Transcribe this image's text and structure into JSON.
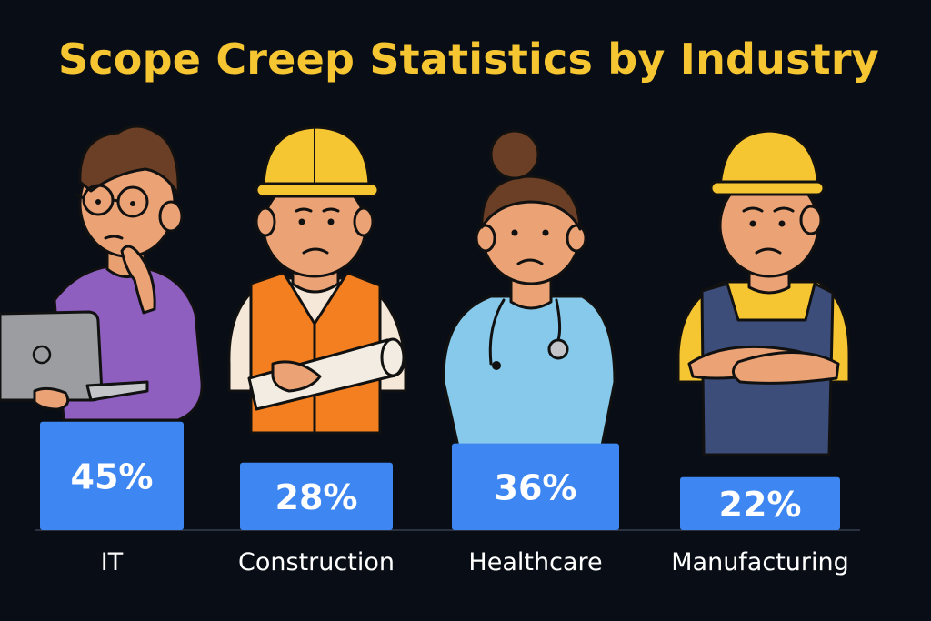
{
  "chart_data": {
    "type": "bar",
    "title": "Scope Creep Statistics by Industry",
    "categories": [
      "IT",
      "Construction",
      "Healthcare",
      "Manufacturing"
    ],
    "values": [
      45,
      28,
      36,
      22
    ],
    "value_labels": [
      "45%",
      "28%",
      "36%",
      "22%"
    ],
    "unit": "%",
    "xlabel": "",
    "ylabel": "",
    "legend": "none",
    "grid": false
  },
  "colors": {
    "background": "#080d16",
    "title": "#f6c532",
    "bar": "#3e87f2",
    "bar_text": "#ffffff",
    "category_text": "#ffffff"
  },
  "figures": [
    {
      "industry": "IT",
      "icon": "it-worker-with-laptop-icon"
    },
    {
      "industry": "Construction",
      "icon": "construction-worker-with-blueprints-icon"
    },
    {
      "industry": "Healthcare",
      "icon": "nurse-with-stethoscope-icon"
    },
    {
      "industry": "Manufacturing",
      "icon": "factory-worker-arms-crossed-icon"
    }
  ]
}
